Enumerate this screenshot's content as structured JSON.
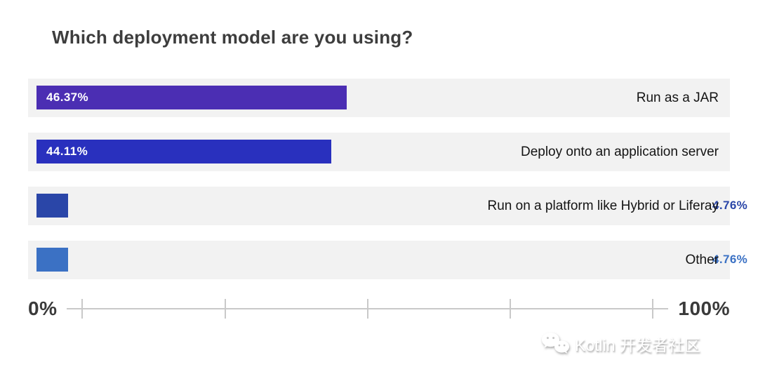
{
  "chart_data": {
    "type": "bar",
    "orientation": "horizontal",
    "title": "Which deployment model are you using?",
    "categories": [
      "Run as a JAR",
      "Deploy onto an application server",
      "Run on a platform like Hybrid or Liferay",
      "Other"
    ],
    "values": [
      46.37,
      44.11,
      4.76,
      4.76
    ],
    "value_labels": [
      "46.37%",
      "44.11%",
      "4.76%",
      "4.76%"
    ],
    "label_inside": [
      true,
      true,
      false,
      false
    ],
    "bar_colors": [
      "#4B2EB3",
      "#2930BE",
      "#2A46A8",
      "#3B71C4"
    ],
    "row_background": "#F2F2F2",
    "xlim": [
      0,
      100
    ],
    "grid": false,
    "legend": "none",
    "axis": {
      "min_label": "0%",
      "max_label": "100%",
      "tick_positions": [
        0,
        25,
        50,
        75,
        100
      ]
    }
  },
  "watermark": {
    "text": "Kotlin 开发者社区",
    "icon": "wechat-icon"
  }
}
